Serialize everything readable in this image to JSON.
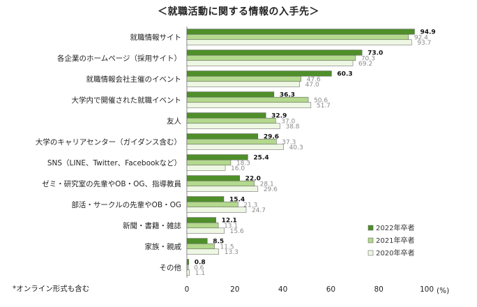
{
  "chart_data": {
    "type": "bar",
    "orientation": "horizontal",
    "title": "＜就職活動に関する情報の入手先＞",
    "footnote": "*オンライン形式も含む",
    "unit": "(%)",
    "xlim": [
      0,
      100
    ],
    "xticks": [
      "0",
      "20",
      "40",
      "60",
      "80",
      "100"
    ],
    "categories": [
      "就職情報サイト",
      "各企業のホームページ（採用サイト）",
      "就職情報会社主催のイベント",
      "大学内で開催された就職イベント",
      "友人",
      "大学のキャリアセンター（ガイダンス含む）",
      "SNS（LINE、Twitter、Facebookなど）",
      "ゼミ・研究室の先輩やOB・OG、指導教員",
      "部活・サークルの先輩やOB・OG",
      "新聞・書籍・雑誌",
      "家族・親戚",
      "その他"
    ],
    "series": [
      {
        "name": "2022年卒者",
        "color": "#4f8f2a",
        "label_color": "#111111",
        "values": [
          94.9,
          73.0,
          60.3,
          36.3,
          32.9,
          29.6,
          25.4,
          22.0,
          15.4,
          12.1,
          8.5,
          0.8
        ]
      },
      {
        "name": "2021年卒者",
        "color": "#b3d88e",
        "label_color": "#8a8a8a",
        "values": [
          92.4,
          70.3,
          47.6,
          50.6,
          37.0,
          37.3,
          18.3,
          28.1,
          21.3,
          13.1,
          11.5,
          0.6
        ]
      },
      {
        "name": "2020年卒者",
        "color": "#eef7e3",
        "label_color": "#8a8a8a",
        "values": [
          93.7,
          69.2,
          47.0,
          51.7,
          38.8,
          40.3,
          16.0,
          29.6,
          24.7,
          15.6,
          13.3,
          1.1
        ]
      }
    ],
    "legend_position": "bottom-right"
  }
}
